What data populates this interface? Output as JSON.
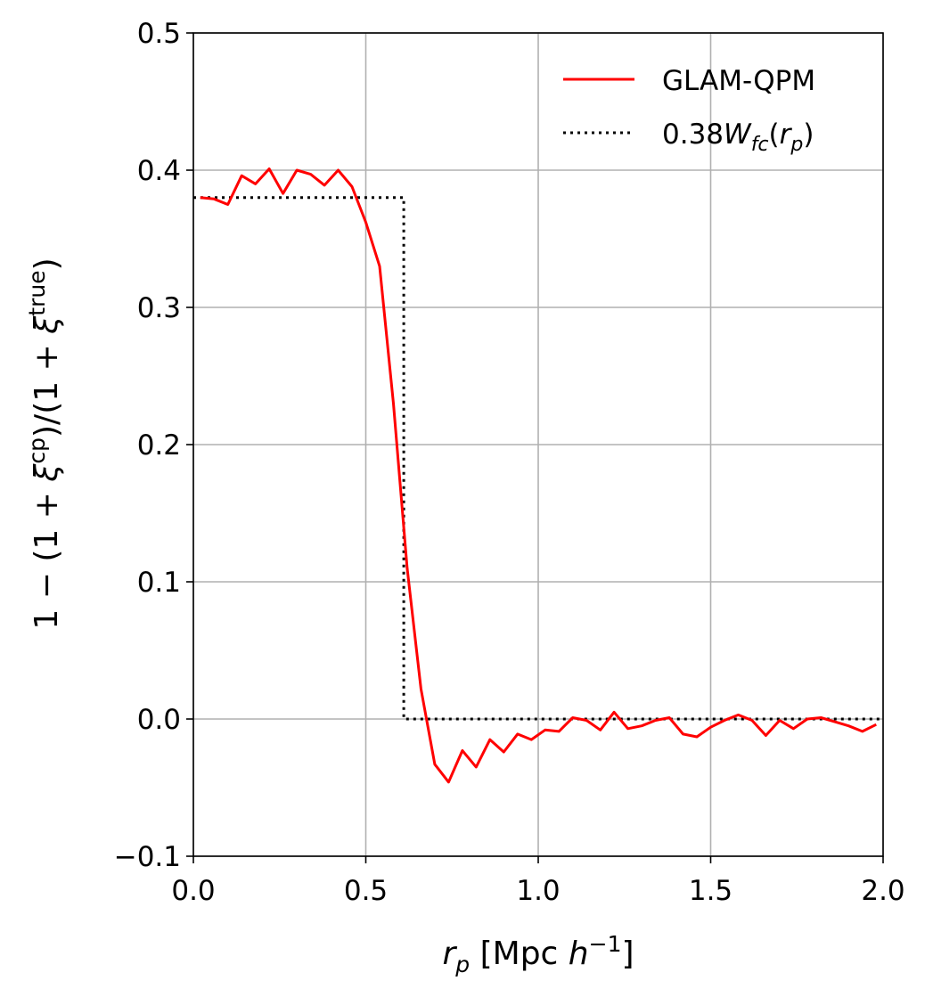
{
  "chart_data": {
    "type": "line",
    "xlabel": "r_p [Mpc h^{-1}]",
    "ylabel": "1 − (1 + ξ^cp)/(1 + ξ^true)",
    "xlim": [
      0.0,
      2.0
    ],
    "ylim": [
      -0.1,
      0.5
    ],
    "x_ticks": [
      "0.0",
      "0.5",
      "1.0",
      "1.5",
      "2.0"
    ],
    "y_ticks": [
      "−0.1",
      "0.0",
      "0.1",
      "0.2",
      "0.3",
      "0.4",
      "0.5"
    ],
    "grid": true,
    "legend_position": "top-right",
    "series": [
      {
        "name": "GLAM-QPM",
        "style": "solid",
        "color": "#ff0000",
        "x": [
          0.02,
          0.06,
          0.1,
          0.14,
          0.18,
          0.22,
          0.26,
          0.3,
          0.34,
          0.38,
          0.42,
          0.46,
          0.5,
          0.54,
          0.58,
          0.62,
          0.66,
          0.7,
          0.74,
          0.78,
          0.82,
          0.86,
          0.9,
          0.94,
          0.98,
          1.02,
          1.06,
          1.1,
          1.14,
          1.18,
          1.22,
          1.26,
          1.3,
          1.34,
          1.38,
          1.42,
          1.46,
          1.5,
          1.54,
          1.58,
          1.62,
          1.66,
          1.7,
          1.74,
          1.78,
          1.82,
          1.86,
          1.9,
          1.94,
          1.98
        ],
        "y": [
          0.38,
          0.379,
          0.375,
          0.396,
          0.39,
          0.401,
          0.383,
          0.4,
          0.397,
          0.389,
          0.4,
          0.388,
          0.362,
          0.33,
          0.23,
          0.11,
          0.022,
          -0.033,
          -0.046,
          -0.023,
          -0.035,
          -0.015,
          -0.024,
          -0.011,
          -0.015,
          -0.008,
          -0.009,
          0.001,
          -0.001,
          -0.008,
          0.005,
          -0.007,
          -0.005,
          -0.001,
          0.001,
          -0.011,
          -0.013,
          -0.006,
          -0.001,
          0.003,
          -0.001,
          -0.012,
          -0.001,
          -0.007,
          0.0,
          0.001,
          -0.002,
          -0.005,
          -0.009,
          -0.004
        ]
      },
      {
        "name": "0.38W_fc(r_p)",
        "style": "dotted",
        "color": "#000000",
        "x": [
          0.0,
          0.61,
          0.61,
          2.0
        ],
        "y": [
          0.38,
          0.38,
          0.0,
          0.0
        ]
      }
    ]
  }
}
